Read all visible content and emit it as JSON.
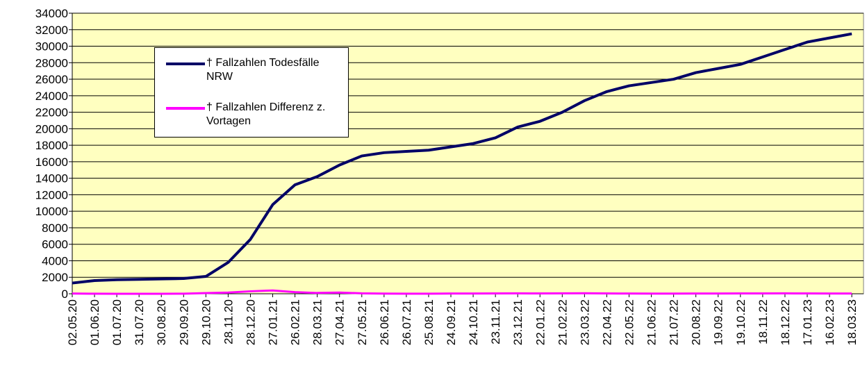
{
  "chart_data": {
    "type": "line",
    "categories": [
      "02.05.20",
      "01.06.20",
      "01.07.20",
      "31.07.20",
      "30.08.20",
      "29.09.20",
      "29.10.20",
      "28.11.20",
      "28.12.20",
      "27.01.21",
      "26.02.21",
      "28.03.21",
      "27.04.21",
      "27.05.21",
      "26.06.21",
      "26.07.21",
      "25.08.21",
      "24.09.21",
      "24.10.21",
      "23.11.21",
      "23.12.21",
      "22.01.22",
      "21.02.22",
      "23.03.22",
      "22.04.22",
      "22.05.22",
      "21.06.22",
      "21.07.22",
      "20.08.22",
      "19.09.22",
      "19.10.22",
      "18.11.22",
      "18.12.22",
      "17.01.23",
      "16.02.23",
      "18.03.23"
    ],
    "series": [
      {
        "name": "† Fallzahlen Todesfälle NRW",
        "color": "#000066",
        "values": [
          1300,
          1600,
          1700,
          1750,
          1800,
          1850,
          2100,
          3800,
          6600,
          10800,
          13200,
          14200,
          15600,
          16700,
          17100,
          17250,
          17400,
          17800,
          18200,
          18900,
          20200,
          20900,
          22000,
          23400,
          24500,
          25200,
          25600,
          26000,
          26800,
          27300,
          27800,
          28700,
          29600,
          30500,
          31000,
          31500
        ]
      },
      {
        "name": "† Fallzahlen Differenz z. Vortagen",
        "color": "#ff00ff",
        "values": [
          30,
          10,
          5,
          5,
          5,
          10,
          80,
          150,
          300,
          400,
          200,
          100,
          150,
          50,
          20,
          10,
          10,
          30,
          30,
          40,
          50,
          40,
          50,
          60,
          40,
          30,
          20,
          20,
          30,
          30,
          40,
          40,
          50,
          40,
          30,
          30
        ]
      }
    ],
    "ylim": [
      0,
      34000
    ],
    "yticks": [
      0,
      2000,
      4000,
      6000,
      8000,
      10000,
      12000,
      14000,
      16000,
      18000,
      20000,
      22000,
      24000,
      26000,
      28000,
      30000,
      32000,
      34000
    ],
    "grid": true,
    "background": "#ffffc0"
  }
}
